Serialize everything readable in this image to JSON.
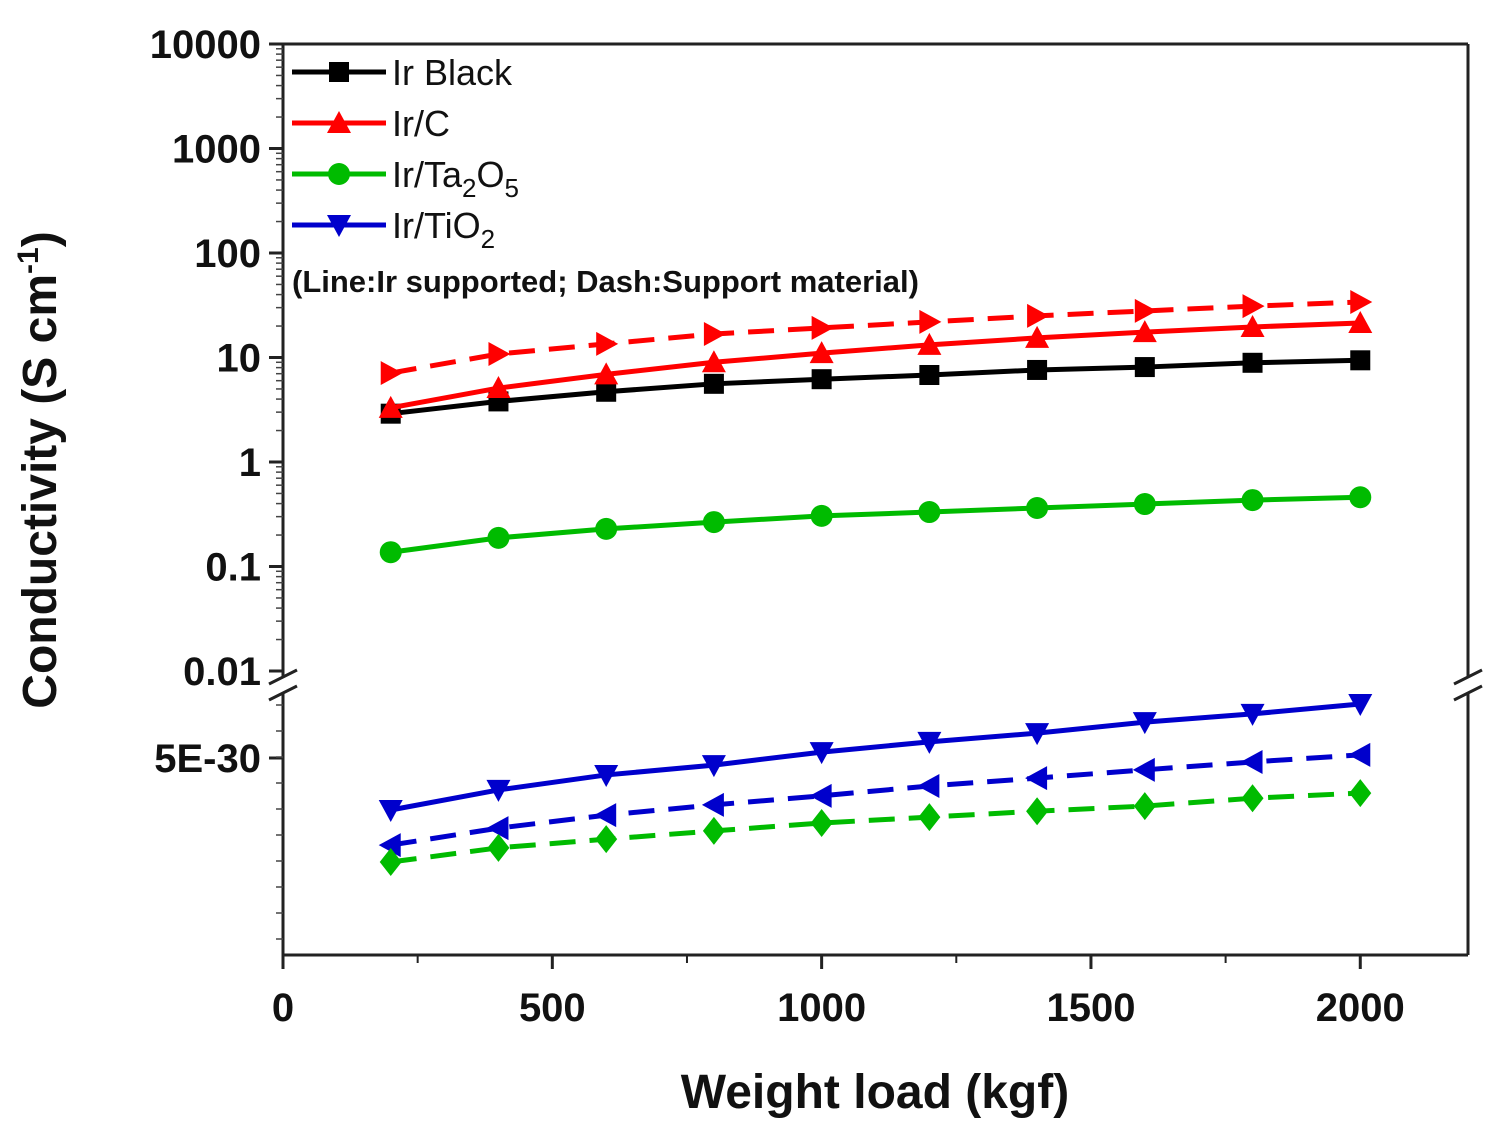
{
  "chart_data": {
    "type": "line",
    "xlabel": "Weight load (kgf)",
    "ylabel": {
      "main": "Conductivity (S cm",
      "sup": "-1",
      "end": ")"
    },
    "xlim": [
      0,
      2200
    ],
    "xticks": [
      "0",
      "500",
      "1000",
      "1500",
      "2000"
    ],
    "xtick_values": [
      0,
      500,
      1000,
      1500,
      2000
    ],
    "y_upper": {
      "scale": "log",
      "ylim": [
        0.01,
        10000
      ],
      "ticks": [
        "10000",
        "1000",
        "100",
        "10",
        "1",
        "0.1",
        "0.01"
      ],
      "tick_values": [
        10000,
        1000,
        100,
        10,
        1,
        0.1,
        0.01
      ]
    },
    "y_lower": {
      "scale": "linear",
      "ylim": [
        0,
        7e-30
      ],
      "ticks": [
        "5E-30"
      ],
      "tick_values": [
        5e-30
      ]
    },
    "axis_break": true,
    "grid": false,
    "legend_placement": "top-left",
    "legend": [
      {
        "parts": [
          {
            "t": "Ir Black"
          }
        ],
        "color": "#000000",
        "marker": "square"
      },
      {
        "parts": [
          {
            "t": "Ir/C"
          }
        ],
        "color": "#ff0000",
        "marker": "triangle-up"
      },
      {
        "parts": [
          {
            "t": "Ir/Ta"
          },
          {
            "t": "2",
            "sub": true
          },
          {
            "t": "O"
          },
          {
            "t": "5",
            "sub": true
          }
        ],
        "color": "#00bb00",
        "marker": "circle"
      },
      {
        "parts": [
          {
            "t": "Ir/TiO"
          },
          {
            "t": "2",
            "sub": true
          }
        ],
        "color": "#0000cc",
        "marker": "triangle-down"
      }
    ],
    "note": "(Line:Ir supported; Dash:Support material)",
    "x": [
      200,
      400,
      600,
      800,
      1000,
      1200,
      1400,
      1600,
      1800,
      2000
    ],
    "series": [
      {
        "name": "Ir Black",
        "panel": "upper",
        "color": "#000000",
        "marker": "square",
        "dashed": false,
        "values": [
          2.9,
          3.8,
          4.7,
          5.6,
          6.2,
          6.8,
          7.6,
          8.1,
          8.9,
          9.4
        ]
      },
      {
        "name": "Ir/C",
        "panel": "upper",
        "color": "#ff0000",
        "marker": "triangle-up",
        "dashed": false,
        "values": [
          3.3,
          5.1,
          6.9,
          9.0,
          11.0,
          13.2,
          15.4,
          17.5,
          19.6,
          21.4
        ]
      },
      {
        "panel": "upper",
        "color": "#ff0000",
        "marker": "triangle-right",
        "dashed": true,
        "values": [
          7.1,
          10.8,
          13.5,
          16.8,
          19.2,
          21.9,
          25.0,
          27.9,
          31.0,
          34.0
        ]
      },
      {
        "name": "Ir/Ta2O5",
        "panel": "upper",
        "color": "#00bb00",
        "marker": "circle",
        "dashed": false,
        "values": [
          0.137,
          0.188,
          0.229,
          0.266,
          0.305,
          0.332,
          0.363,
          0.396,
          0.432,
          0.46
        ]
      },
      {
        "name": "Ir/TiO2",
        "panel": "lower",
        "color": "#0000cc",
        "marker": "triangle-down",
        "dashed": false,
        "values": [
          3.68e-30,
          4.19e-30,
          4.57e-30,
          4.82e-30,
          5.15e-30,
          5.41e-30,
          5.63e-30,
          5.91e-30,
          6.12e-30,
          6.37e-30
        ]
      },
      {
        "panel": "lower",
        "color": "#0000cc",
        "marker": "triangle-left",
        "dashed": true,
        "values": [
          2.79e-30,
          3.22e-30,
          3.55e-30,
          3.81e-30,
          4.04e-30,
          4.29e-30,
          4.49e-30,
          4.7e-30,
          4.9e-30,
          5.08e-30
        ]
      },
      {
        "panel": "lower",
        "color": "#00bb00",
        "marker": "diamond",
        "dashed": true,
        "values": [
          2.36e-30,
          2.72e-30,
          2.94e-30,
          3.15e-30,
          3.35e-30,
          3.5e-30,
          3.65e-30,
          3.78e-30,
          3.98e-30,
          4.11e-30
        ]
      }
    ]
  }
}
